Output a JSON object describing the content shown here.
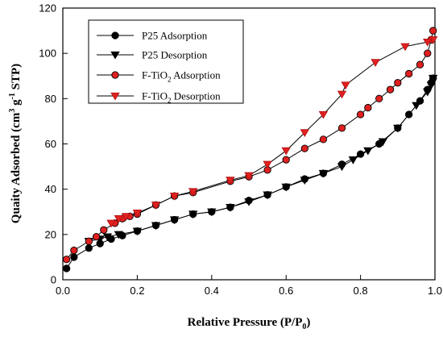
{
  "chart_data": {
    "type": "scatter",
    "xlabel": "Relative Pressure (P/P",
    "xlabel_sub": "0",
    "xlabel_tail": ")",
    "ylabel": "Quaity Adsorbed (cm",
    "ylabel_sup1": "3",
    "ylabel_mid": " g",
    "ylabel_sup2": "-1",
    "ylabel_tail": " STP)",
    "xlim": [
      0.0,
      1.0
    ],
    "ylim": [
      0,
      120
    ],
    "xticks": [
      "0.0",
      "0.2",
      "0.4",
      "0.6",
      "0.8",
      "1.0"
    ],
    "yticks": [
      "0",
      "20",
      "40",
      "60",
      "80",
      "100",
      "120"
    ],
    "grid": false,
    "legend_placement": "top-left",
    "series": [
      {
        "name": "P25 Adsorption",
        "legend_main": "P25 Adsorption",
        "legend_sub": "",
        "legend_tail": "",
        "marker": "circle",
        "color": "#000000",
        "x": [
          0.01,
          0.03,
          0.07,
          0.1,
          0.13,
          0.16,
          0.2,
          0.25,
          0.3,
          0.35,
          0.4,
          0.45,
          0.5,
          0.55,
          0.6,
          0.65,
          0.7,
          0.75,
          0.8,
          0.85,
          0.9,
          0.93,
          0.96,
          0.98,
          0.99,
          0.995
        ],
        "y": [
          5,
          10,
          14,
          16,
          18,
          19.5,
          21.5,
          24,
          26.5,
          29,
          30,
          32,
          35,
          37.5,
          41,
          44.5,
          47,
          51,
          55.5,
          60,
          67,
          73,
          79,
          84,
          87,
          89
        ]
      },
      {
        "name": "P25 Desorption",
        "legend_main": "P25 Desorption",
        "legend_sub": "",
        "legend_tail": "",
        "marker": "triangle-down",
        "color": "#000000",
        "x": [
          0.995,
          0.99,
          0.98,
          0.95,
          0.9,
          0.86,
          0.82,
          0.78,
          0.75,
          0.7,
          0.65,
          0.6,
          0.55,
          0.5,
          0.45,
          0.4,
          0.35,
          0.3,
          0.25,
          0.2,
          0.15,
          0.12,
          0.1,
          0.07
        ],
        "y": [
          89,
          86,
          83,
          77,
          67,
          61,
          57,
          53,
          50,
          47,
          44,
          41,
          37.5,
          34.5,
          32,
          30,
          29,
          26.5,
          24,
          21.5,
          20,
          19,
          18,
          17
        ]
      },
      {
        "name": "F-TiO2 Adsorption",
        "legend_main": "F-TiO",
        "legend_sub": "2",
        "legend_tail": " Adsorption",
        "marker": "circle",
        "color": "#e02020",
        "x": [
          0.01,
          0.03,
          0.07,
          0.09,
          0.11,
          0.14,
          0.16,
          0.18,
          0.2,
          0.25,
          0.3,
          0.35,
          0.45,
          0.5,
          0.55,
          0.6,
          0.65,
          0.7,
          0.75,
          0.8,
          0.82,
          0.85,
          0.88,
          0.9,
          0.93,
          0.96,
          0.98,
          0.99,
          0.995
        ],
        "y": [
          9,
          13,
          17,
          19,
          22,
          25,
          27,
          28,
          29,
          33,
          37,
          38.5,
          43.5,
          45.5,
          48.5,
          53,
          58,
          62,
          67,
          73,
          76,
          80,
          84,
          87,
          91,
          95,
          100,
          106,
          110
        ]
      },
      {
        "name": "F-TiO2 Desorption",
        "legend_main": "F-TiO",
        "legend_sub": "2",
        "legend_tail": " Desorption",
        "marker": "triangle-down",
        "color": "#e02020",
        "x": [
          0.995,
          0.98,
          0.92,
          0.84,
          0.76,
          0.75,
          0.7,
          0.65,
          0.6,
          0.55,
          0.5,
          0.45,
          0.35,
          0.3,
          0.25,
          0.2,
          0.17,
          0.15,
          0.13
        ],
        "y": [
          106,
          105,
          103,
          96,
          86,
          82,
          73,
          65,
          57,
          51,
          46,
          44,
          39,
          37,
          33,
          29.5,
          28,
          27,
          25
        ]
      }
    ]
  }
}
